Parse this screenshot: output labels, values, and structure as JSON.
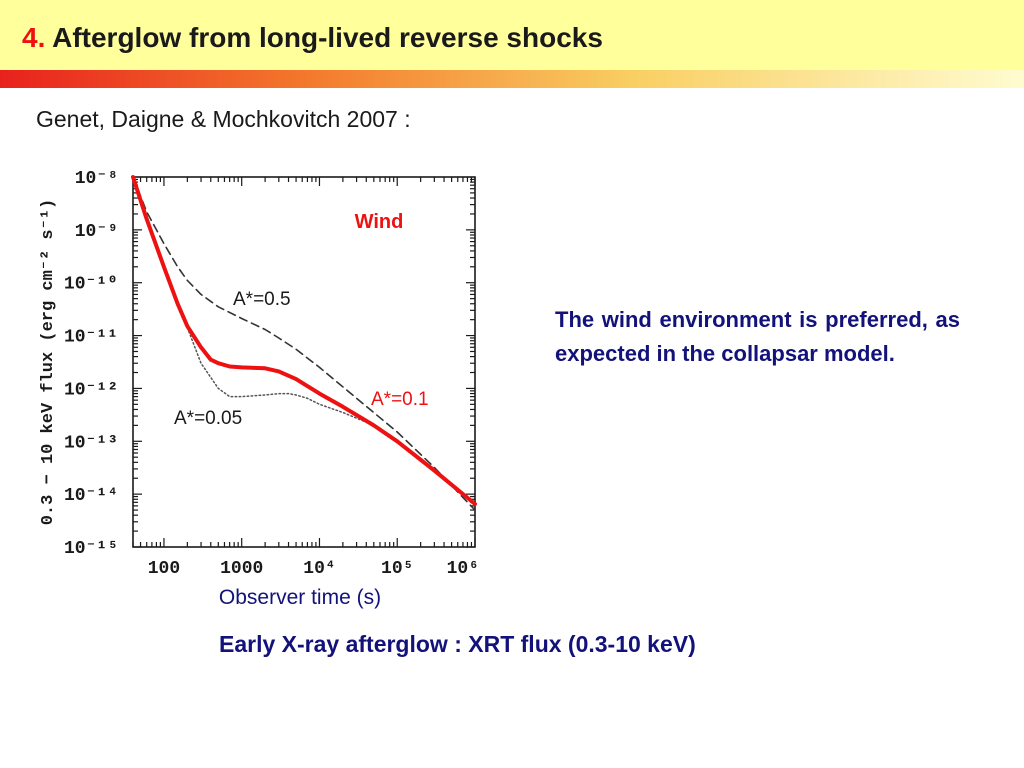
{
  "slide": {
    "title_number": "4.",
    "title_text": "Afterglow from long-lived reverse shocks",
    "reference": "Genet, Daigne & Mochkovitch 2007 :",
    "note": "The wind environment is preferred, as expected in the collapsar model.",
    "caption": "Early X-ray afterglow : XRT flux (0.3-10 keV)"
  },
  "colors": {
    "title_band": "#ffff9c",
    "accent_red": "#ee1111",
    "text_navy": "#12127a"
  },
  "chart_data": {
    "type": "line",
    "x_scale": "log",
    "y_scale": "log",
    "xlim": [
      40,
      1000000
    ],
    "ylim": [
      1e-15,
      1e-08
    ],
    "grid": false,
    "legend": "none",
    "panel_label": "Wind",
    "xlabel": "Observer time (s)",
    "ylabel": "0.3 − 10 keV flux (erg cm⁻² s⁻¹)",
    "x_ticks": [
      {
        "value": 100,
        "label": "100"
      },
      {
        "value": 1000,
        "label": "1000"
      },
      {
        "value": 10000,
        "label": "10⁴"
      },
      {
        "value": 100000,
        "label": "10⁵"
      },
      {
        "value": 1000000,
        "label": "10⁶"
      }
    ],
    "y_ticks": [
      {
        "value": 1e-08,
        "label": "10⁻⁸"
      },
      {
        "value": 1e-09,
        "label": "10⁻⁹"
      },
      {
        "value": 1e-10,
        "label": "10⁻¹⁰"
      },
      {
        "value": 1e-11,
        "label": "10⁻¹¹"
      },
      {
        "value": 1e-12,
        "label": "10⁻¹²"
      },
      {
        "value": 1e-13,
        "label": "10⁻¹³"
      },
      {
        "value": 1e-14,
        "label": "10⁻¹⁴"
      },
      {
        "value": 1e-15,
        "label": "10⁻¹⁵"
      }
    ],
    "series": [
      {
        "label": "A*=0.5",
        "color": "#333333",
        "style": "dashed",
        "x": [
          40,
          60,
          100,
          150,
          200,
          300,
          500,
          1000,
          2000,
          3000,
          5000,
          10000,
          30000,
          100000,
          300000,
          1000000
        ],
        "y": [
          1e-08,
          2.2e-09,
          5.5e-10,
          2e-10,
          1.1e-10,
          6e-11,
          3.5e-11,
          2.1e-11,
          1.3e-11,
          9e-12,
          5.5e-12,
          2.5e-12,
          6.5e-13,
          1.5e-13,
          3.2e-14,
          5e-15
        ]
      },
      {
        "label": "A*=0.1",
        "color": "#ee1111",
        "style": "solid",
        "x": [
          40,
          60,
          100,
          150,
          200,
          300,
          400,
          500,
          700,
          1000,
          2000,
          3000,
          5000,
          10000,
          20000,
          50000,
          100000,
          300000,
          1000000
        ],
        "y": [
          1e-08,
          1.6e-09,
          2e-10,
          4e-11,
          1.5e-11,
          6e-12,
          3.5e-12,
          3e-12,
          2.6e-12,
          2.5e-12,
          2.4e-12,
          2.1e-12,
          1.5e-12,
          8e-13,
          4.5e-13,
          2e-13,
          1e-13,
          2.8e-14,
          6.5e-15
        ]
      },
      {
        "label": "A*=0.05",
        "color": "#555555",
        "style": "dotted",
        "x": [
          200,
          300,
          500,
          700,
          1000,
          2000,
          3000,
          4000,
          5000,
          7000,
          10000,
          20000,
          50000,
          100000
        ],
        "y": [
          1.4e-11,
          3e-12,
          1e-12,
          7e-13,
          7e-13,
          7.5e-13,
          8e-13,
          8e-13,
          7.5e-13,
          6.5e-13,
          5e-13,
          3.5e-13,
          2e-13,
          1e-13
        ]
      }
    ],
    "annotations": [
      {
        "text": "A*=0.5",
        "color": "#1a1a1a"
      },
      {
        "text": "A*=0.1",
        "color": "#ee1111"
      },
      {
        "text": "A*=0.05",
        "color": "#1a1a1a"
      }
    ]
  }
}
